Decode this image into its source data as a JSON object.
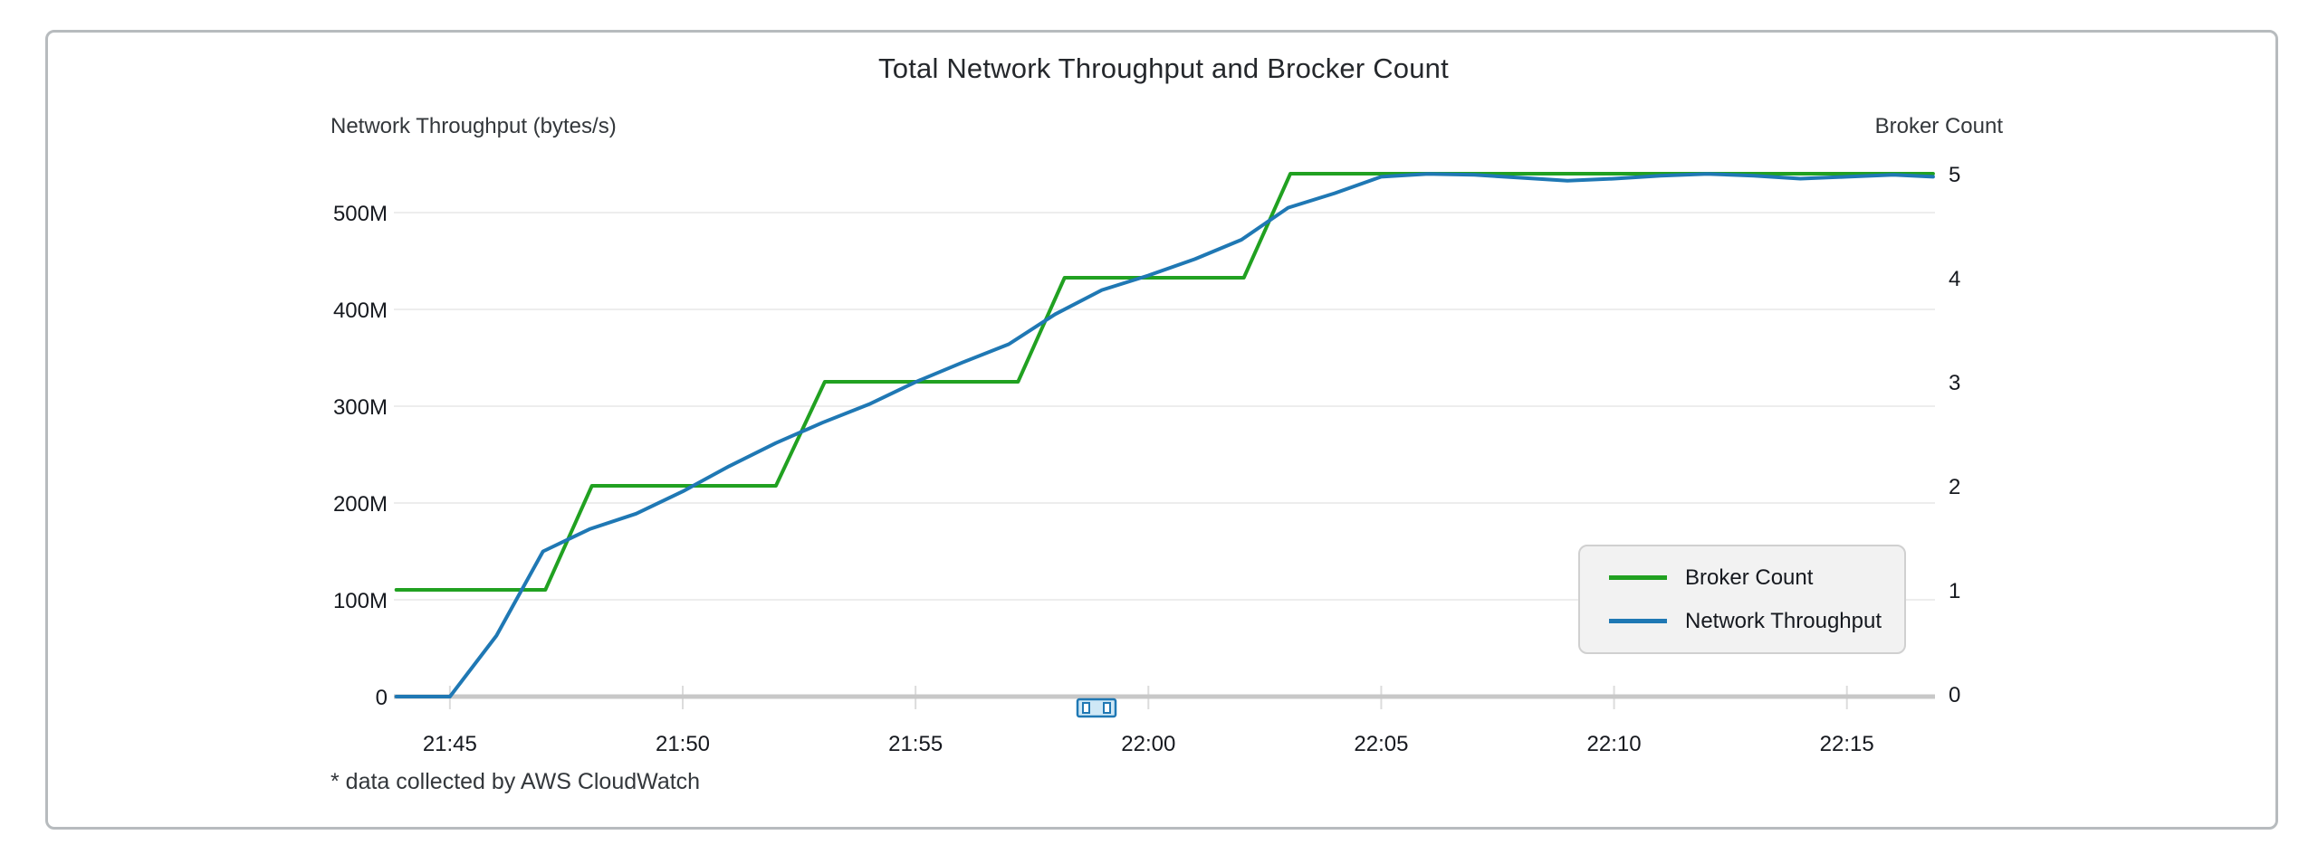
{
  "chart_data": {
    "type": "line",
    "title": "Total Network Throughput and Brocker Count",
    "footnote": "* data collected by AWS CloudWatch",
    "x_axis": {
      "unit": "time (HH:MM), minutes after 21:00",
      "domain_minutes": [
        43.85,
        76.85
      ],
      "tick_values": [
        45,
        50,
        55,
        60,
        65,
        70,
        75
      ],
      "tick_labels": [
        "21:45",
        "21:50",
        "21:55",
        "22:00",
        "22:05",
        "22:10",
        "22:15"
      ]
    },
    "left_axis": {
      "label": "Network Throughput (bytes/s)",
      "unit": "bytes/s, values in millions",
      "tick_values": [
        0,
        100,
        200,
        300,
        400,
        500
      ],
      "tick_labels": [
        "0",
        "100M",
        "200M",
        "300M",
        "400M",
        "500M"
      ]
    },
    "right_axis": {
      "label": "Broker Count",
      "tick_values": [
        0,
        1,
        2,
        3,
        4,
        5
      ],
      "tick_labels": [
        "0",
        "1",
        "2",
        "3",
        "4",
        "5"
      ]
    },
    "grid": "horizontal-only",
    "legend_position": "right-middle",
    "series": [
      {
        "name": "Broker Count",
        "axis": "right",
        "color": "#21a121",
        "points": [
          [
            43.85,
            1
          ],
          [
            47.05,
            1
          ],
          [
            48.05,
            2
          ],
          [
            52,
            2
          ],
          [
            53.05,
            3
          ],
          [
            57.2,
            3
          ],
          [
            58.2,
            4
          ],
          [
            62.05,
            4
          ],
          [
            63.05,
            5
          ],
          [
            76.85,
            5
          ]
        ]
      },
      {
        "name": "Network Throughput",
        "axis": "left",
        "color": "#1f78b4",
        "points": [
          [
            43.85,
            0
          ],
          [
            45,
            0
          ],
          [
            46,
            63
          ],
          [
            47,
            150
          ],
          [
            48,
            173
          ],
          [
            49,
            189
          ],
          [
            50,
            212
          ],
          [
            51,
            238
          ],
          [
            52,
            262
          ],
          [
            53,
            283
          ],
          [
            54,
            302
          ],
          [
            55,
            325
          ],
          [
            56,
            345
          ],
          [
            57,
            364
          ],
          [
            58,
            395
          ],
          [
            59,
            420
          ],
          [
            60,
            435
          ],
          [
            61,
            452
          ],
          [
            62,
            472
          ],
          [
            63,
            505
          ],
          [
            64,
            520
          ],
          [
            65,
            537
          ],
          [
            66,
            540
          ],
          [
            67,
            539
          ],
          [
            68,
            536
          ],
          [
            69,
            533
          ],
          [
            70,
            535
          ],
          [
            71,
            538
          ],
          [
            72,
            540
          ],
          [
            73,
            538
          ],
          [
            74,
            535
          ],
          [
            75,
            537
          ],
          [
            76,
            539
          ],
          [
            76.85,
            537
          ]
        ]
      }
    ],
    "controls": {
      "time_brush": {
        "description": "small time-range brush sitting on the x-axis just left of 22:00"
      }
    },
    "colors": {
      "axis_line": "#c8c8c8",
      "gridline": "#ededed",
      "tick_mark": "#dcdcdc",
      "tick_text": "#16191f",
      "brush_border": "#1f78b4",
      "brush_fill": "#cfe8f6"
    }
  }
}
